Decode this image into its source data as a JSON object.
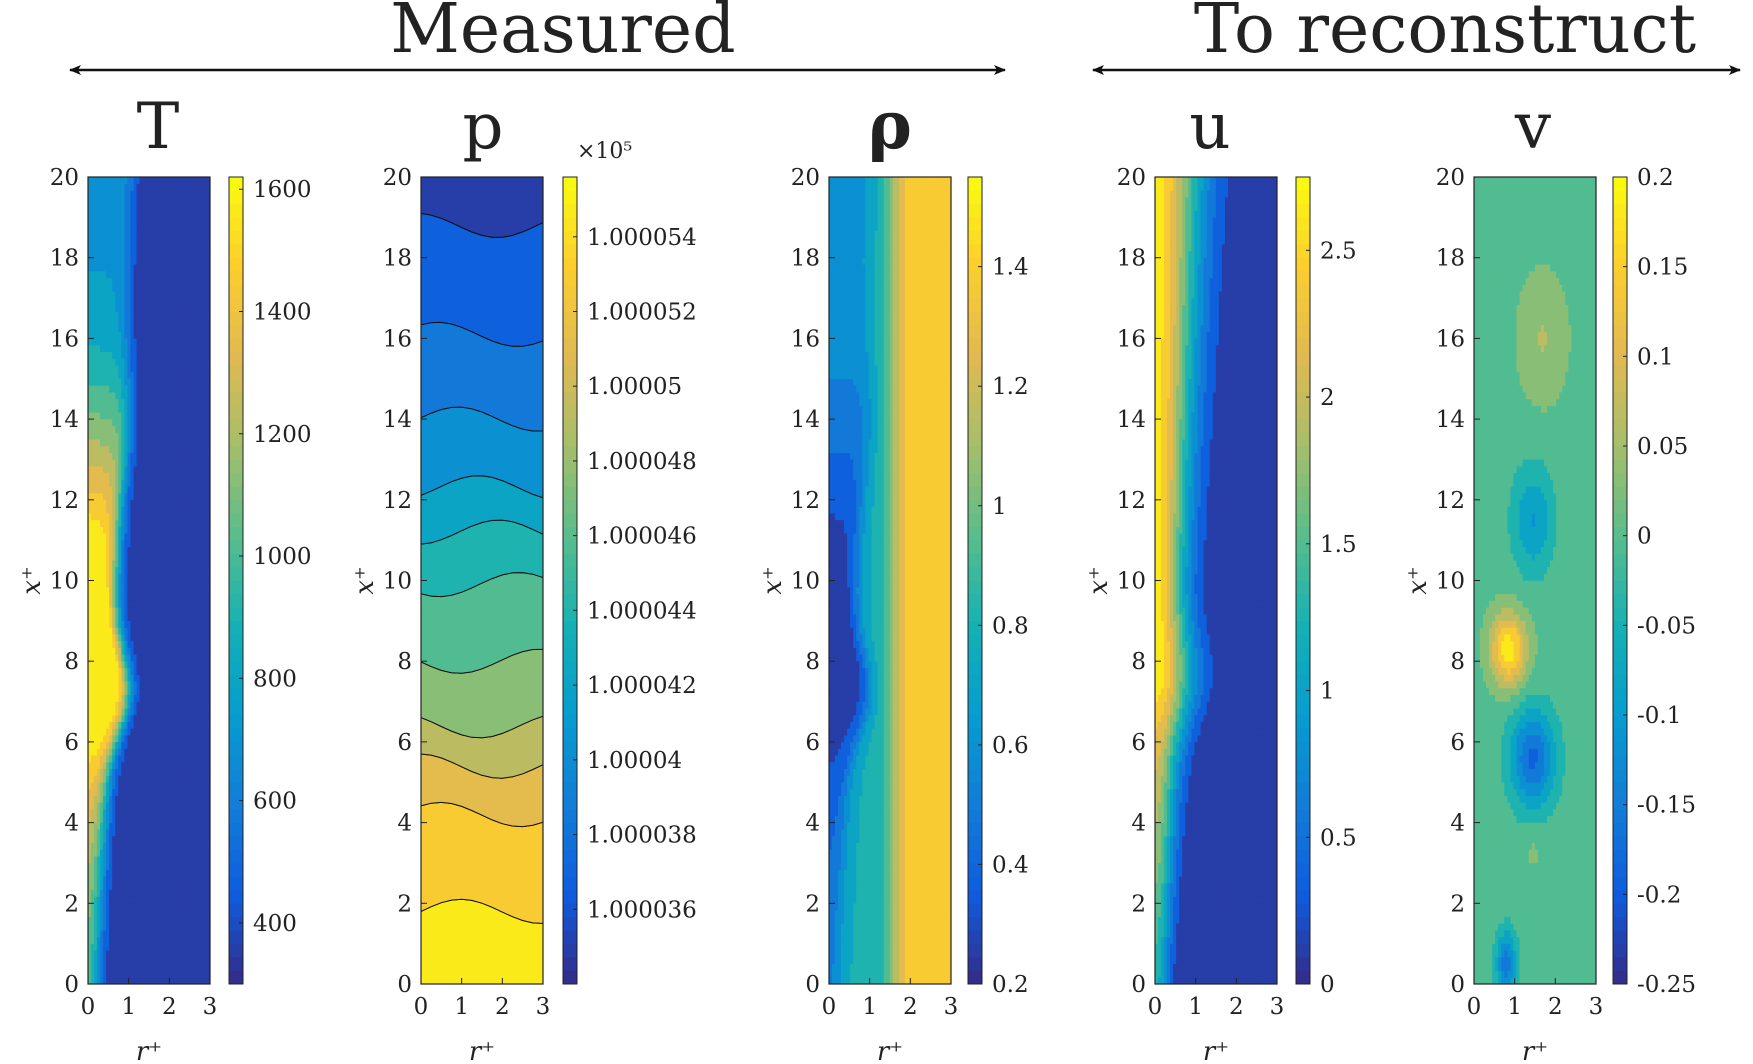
{
  "figure": {
    "group_labels": {
      "measured": "Measured",
      "reconstruct": "To reconstruct"
    },
    "panel_order": [
      "T",
      "p",
      "rho",
      "u",
      "v"
    ]
  },
  "chart_data": [
    {
      "id": "T",
      "type": "heatmap",
      "title": "T",
      "group": "Measured",
      "xlabel": "r⁺",
      "ylabel": "x⁺",
      "xlim": [
        0,
        3
      ],
      "ylim": [
        0,
        20
      ],
      "xticks": [
        "0",
        "1",
        "2",
        "3"
      ],
      "yticks": [
        "0",
        "2",
        "4",
        "6",
        "8",
        "10",
        "12",
        "14",
        "16",
        "18",
        "20"
      ],
      "colorbar": {
        "min": 300,
        "max": 1620,
        "ticks": [
          400,
          600,
          800,
          1000,
          1200,
          1400,
          1600
        ],
        "tick_labels": [
          "400",
          "600",
          "800",
          "1000",
          "1200",
          "1400",
          "1600"
        ],
        "exponent_label": ""
      },
      "contours": true,
      "field": "flame"
    },
    {
      "id": "p",
      "type": "heatmap",
      "title": "p",
      "group": "Measured",
      "xlabel": "r⁺",
      "ylabel": "x⁺",
      "xlim": [
        0,
        3
      ],
      "ylim": [
        0,
        20
      ],
      "xticks": [
        "0",
        "1",
        "2",
        "3"
      ],
      "yticks": [
        "0",
        "2",
        "4",
        "6",
        "8",
        "10",
        "12",
        "14",
        "16",
        "18",
        "20"
      ],
      "colorbar": {
        "min": 1.000034,
        "max": 1.0000556,
        "ticks": [
          1.000036,
          1.000038,
          1.00004,
          1.000042,
          1.000044,
          1.000046,
          1.000048,
          1.00005,
          1.000052,
          1.000054
        ],
        "tick_labels": [
          "1.000036",
          "1.000038",
          "1.00004",
          "1.000042",
          "1.000044",
          "1.000046",
          "1.000048",
          "1.00005",
          "1.000052",
          "1.000054"
        ],
        "exponent_label": "×10⁵"
      },
      "contours": true,
      "field": "bands",
      "band_boundaries_x": [
        1.8,
        4.2,
        5.4,
        6.4,
        8.0,
        9.9,
        11.2,
        12.3,
        14.0,
        16.1,
        18.8
      ]
    },
    {
      "id": "rho",
      "type": "heatmap",
      "title": "ρ",
      "group": "Measured",
      "xlabel": "r⁺",
      "ylabel": "x⁺",
      "xlim": [
        0,
        3
      ],
      "ylim": [
        0,
        20
      ],
      "xticks": [
        "0",
        "1",
        "2",
        "3"
      ],
      "yticks": [
        "0",
        "2",
        "4",
        "6",
        "8",
        "10",
        "12",
        "14",
        "16",
        "18",
        "20"
      ],
      "colorbar": {
        "min": 0.2,
        "max": 1.55,
        "ticks": [
          0.2,
          0.4,
          0.6,
          0.8,
          1,
          1.2,
          1.4
        ],
        "tick_labels": [
          "0.2",
          "0.4",
          "0.6",
          "0.8",
          "1",
          "1.2",
          "1.4"
        ],
        "exponent_label": ""
      },
      "contours": true,
      "field": "inverse-flame"
    },
    {
      "id": "u",
      "type": "heatmap",
      "title": "u",
      "group": "To reconstruct",
      "xlabel": "r⁺",
      "ylabel": "x⁺",
      "xlim": [
        0,
        3
      ],
      "ylim": [
        0,
        20
      ],
      "xticks": [
        "0",
        "1",
        "2",
        "3"
      ],
      "yticks": [
        "0",
        "2",
        "4",
        "6",
        "8",
        "10",
        "12",
        "14",
        "16",
        "18",
        "20"
      ],
      "colorbar": {
        "min": 0,
        "max": 2.75,
        "ticks": [
          0,
          0.5,
          1,
          1.5,
          2,
          2.5
        ],
        "tick_labels": [
          "0",
          "0.5",
          "1",
          "1.5",
          "2",
          "2.5"
        ],
        "exponent_label": ""
      },
      "contours": true,
      "field": "jet"
    },
    {
      "id": "v",
      "type": "heatmap",
      "title": "v",
      "group": "To reconstruct",
      "xlabel": "r⁺",
      "ylabel": "x⁺",
      "xlim": [
        0,
        3
      ],
      "ylim": [
        0,
        20
      ],
      "xticks": [
        "0",
        "1",
        "2",
        "3"
      ],
      "yticks": [
        "0",
        "2",
        "4",
        "6",
        "8",
        "10",
        "12",
        "14",
        "16",
        "18",
        "20"
      ],
      "colorbar": {
        "min": -0.25,
        "max": 0.2,
        "ticks": [
          -0.25,
          -0.2,
          -0.15,
          -0.1,
          -0.05,
          0,
          0.05,
          0.1,
          0.15,
          0.2
        ],
        "tick_labels": [
          "-0.25",
          "-0.2",
          "-0.15",
          "-0.1",
          "-0.05",
          "0",
          "0.05",
          "0.1",
          "0.15",
          "0.2"
        ],
        "exponent_label": ""
      },
      "contours": true,
      "field": "vortices"
    }
  ]
}
